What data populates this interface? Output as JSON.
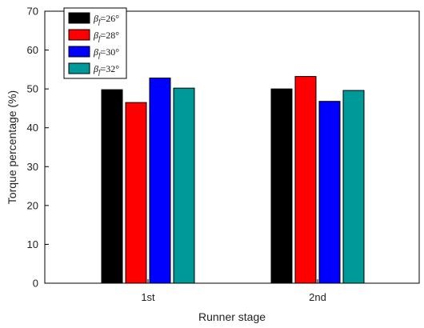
{
  "chart_data": {
    "type": "bar",
    "xlabel": "Runner stage",
    "ylabel": "Torque percentage (%)",
    "ylim": [
      0,
      70
    ],
    "yticks": [
      0,
      10,
      20,
      30,
      40,
      50,
      60,
      70
    ],
    "categories": [
      "1st",
      "2nd"
    ],
    "series": [
      {
        "name": "26°",
        "color": "#000000",
        "values": [
          49.8,
          50.0
        ]
      },
      {
        "name": "28°",
        "color": "#ff0000",
        "values": [
          46.5,
          53.2
        ]
      },
      {
        "name": "30°",
        "color": "#0000ff",
        "values": [
          52.8,
          46.8
        ]
      },
      {
        "name": "32°",
        "color": "#009999",
        "values": [
          50.2,
          49.6
        ]
      }
    ],
    "legend": {
      "symbol": "β",
      "subscript": "f",
      "position": "top-left"
    },
    "grid": false
  }
}
